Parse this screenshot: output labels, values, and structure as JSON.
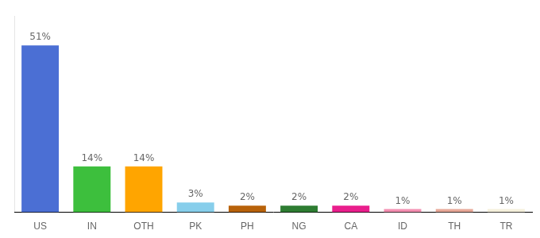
{
  "chart_data": {
    "type": "bar",
    "categories": [
      "US",
      "IN",
      "OTH",
      "PK",
      "PH",
      "NG",
      "CA",
      "ID",
      "TH",
      "TR"
    ],
    "values": [
      51,
      14,
      14,
      3,
      2,
      2,
      2,
      1,
      1,
      1
    ],
    "value_labels": [
      "51%",
      "14%",
      "14%",
      "3%",
      "2%",
      "2%",
      "2%",
      "1%",
      "1%",
      "1%"
    ],
    "colors": [
      "#4B6FD4",
      "#3DBF3D",
      "#FFA500",
      "#87CEEB",
      "#B8620A",
      "#2E7D32",
      "#E91E8C",
      "#F48FB1",
      "#E8A898",
      "#F5F0DC"
    ],
    "ylim": [
      0,
      60
    ],
    "data_labels": true,
    "tick_labels": "x",
    "grid": false
  }
}
